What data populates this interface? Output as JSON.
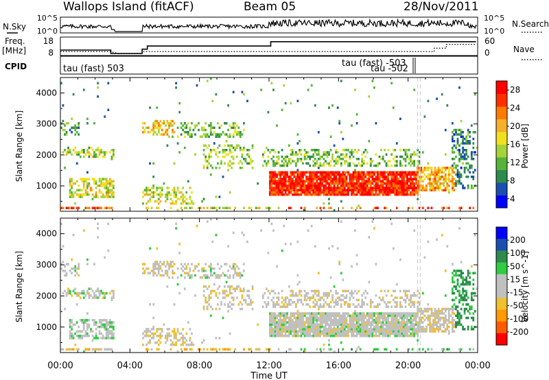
{
  "header": {
    "station": "Wallops Island (fitACF)",
    "beam": "Beam 05",
    "date": "28/Nov/2011"
  },
  "nsky_panel": {
    "left_label": "N.Sky",
    "ticks_left": [
      "10^5",
      "10^0"
    ],
    "ticks_right": [
      "10^5",
      "10^0"
    ],
    "right_label": "N.Search"
  },
  "freq_panel": {
    "left_label_top": "Freq.",
    "left_label_bottom": "[MHz]",
    "ticks_left": [
      "18",
      "8"
    ],
    "ticks_right": [
      "60",
      "0"
    ],
    "right_label": "Nave"
  },
  "cpid_panel": {
    "label": "CPID",
    "texts": [
      "tau (fast) 503",
      "tau (fast) -503",
      "tau -502"
    ]
  },
  "power_panel": {
    "ylabel": "Slant Range [km]",
    "yticks": [
      "4000",
      "3000",
      "2000",
      "1000"
    ],
    "colorbar_label": "Power [dB]",
    "colorbar_ticks": [
      "28",
      "24",
      "20",
      "16",
      "12",
      "8",
      "4"
    ]
  },
  "velocity_panel": {
    "ylabel": "Slant Range [km]",
    "yticks": [
      "4000",
      "3000",
      "2000",
      "1000"
    ],
    "colorbar_label": "Velocity [m s^-1]",
    "colorbar_ticks": [
      "200",
      "100",
      "50",
      "15",
      "-15",
      "-50",
      "-100",
      "-200"
    ]
  },
  "x_axis": {
    "ticks": [
      "00:00",
      "04:00",
      "08:00",
      "12:00",
      "16:00",
      "20:00",
      "00:00"
    ],
    "label": "Time UT"
  },
  "chart_data": {
    "type": "heatmap",
    "title": "Wallops Island (fitACF)",
    "x_range_hours": [
      0,
      24
    ],
    "y_range_km": [
      180,
      4500
    ],
    "power_colorscale": [
      "#0000ff",
      "#1a4fb0",
      "#2f8a4e",
      "#56b33a",
      "#a6d23a",
      "#f0e020",
      "#f6b02a",
      "#ff7a00",
      "#ff3000",
      "#ff0000"
    ],
    "velocity_colorscale": [
      "#ff0000",
      "#ff5a00",
      "#ff9a00",
      "#f0c030",
      "#c0c0c0",
      "#c0c0c0",
      "#2ecc40",
      "#2f8a4e",
      "#1a4fb0",
      "#0000ff"
    ],
    "data_gap_hours": [
      3.1,
      4.7
    ],
    "scatter_regions": [
      {
        "x": [
          0.0,
          1.0
        ],
        "y": [
          2600,
          3000
        ],
        "density": 0.35,
        "pmean": 11,
        "vmean": 0
      },
      {
        "x": [
          0.0,
          3.1
        ],
        "y": [
          1900,
          2200
        ],
        "density": 0.38,
        "pmean": 15,
        "vmean": 0
      },
      {
        "x": [
          0.5,
          3.0
        ],
        "y": [
          600,
          1200
        ],
        "density": 0.62,
        "pmean": 17,
        "vmean": 5
      },
      {
        "x": [
          0.0,
          3.1
        ],
        "y": [
          200,
          320
        ],
        "density": 0.55,
        "pmean": 24,
        "vmean": -20
      },
      {
        "x": [
          4.7,
          6.5
        ],
        "y": [
          2600,
          3100
        ],
        "density": 0.6,
        "pmean": 19,
        "vmean": -5
      },
      {
        "x": [
          6.0,
          10.5
        ],
        "y": [
          2500,
          3000
        ],
        "density": 0.32,
        "pmean": 13,
        "vmean": 0
      },
      {
        "x": [
          4.7,
          7.5
        ],
        "y": [
          350,
          900
        ],
        "density": 0.4,
        "pmean": 16,
        "vmean": -10
      },
      {
        "x": [
          4.8,
          12.0
        ],
        "y": [
          200,
          320
        ],
        "density": 0.45,
        "pmean": 17,
        "vmean": -30
      },
      {
        "x": [
          8.2,
          11.0
        ],
        "y": [
          1500,
          2300
        ],
        "density": 0.3,
        "pmean": 14,
        "vmean": -5
      },
      {
        "x": [
          11.6,
          20.6
        ],
        "y": [
          1550,
          2150
        ],
        "density": 0.38,
        "pmean": 13,
        "vmean": -5
      },
      {
        "x": [
          12.0,
          20.5
        ],
        "y": [
          650,
          1450
        ],
        "density": 0.9,
        "pmean": 27,
        "vmean": 0
      },
      {
        "x": [
          20.5,
          22.6
        ],
        "y": [
          800,
          1600
        ],
        "density": 0.65,
        "pmean": 20,
        "vmean": -5
      },
      {
        "x": [
          22.5,
          23.8
        ],
        "y": [
          900,
          2800
        ],
        "density": 0.35,
        "pmean": 9,
        "vmean": 40
      },
      {
        "x": [
          13.0,
          23.9
        ],
        "y": [
          200,
          320
        ],
        "density": 0.3,
        "pmean": 24,
        "vmean": 20
      }
    ]
  }
}
